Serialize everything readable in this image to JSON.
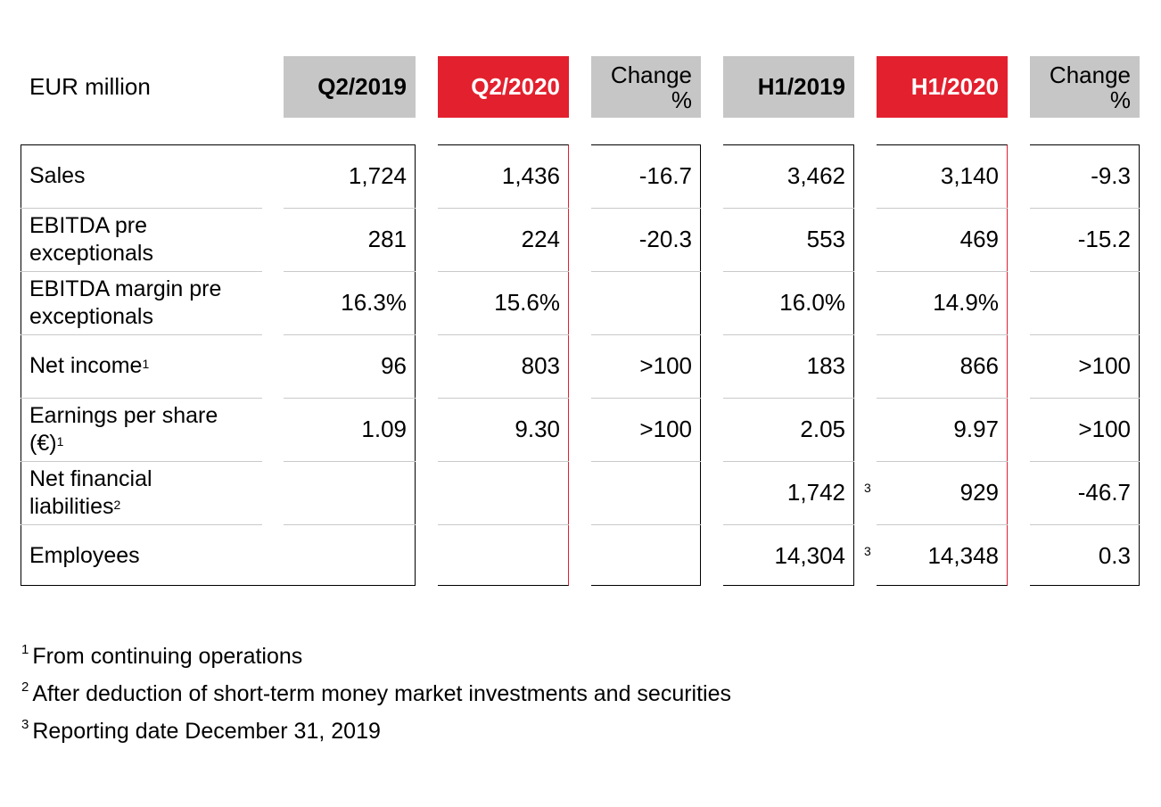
{
  "unit_label": "EUR million",
  "columns": {
    "q2_2019": "Q2/2019",
    "q2_2020": "Q2/2020",
    "change1_line1": "Change",
    "change1_line2": "%",
    "h1_2019": "H1/2019",
    "h1_2020": "H1/2020",
    "change2_line1": "Change",
    "change2_line2": "%"
  },
  "rows": [
    {
      "label_line1": "Sales",
      "label_line2": "",
      "label_sup": "",
      "q2_2019": "1,724",
      "q2_2020": "1,436",
      "change_q": "-16.7",
      "h1_2019": "3,462",
      "h1_2020": "3,140",
      "change_h": "-9.3",
      "h1_note": ""
    },
    {
      "label_line1": "EBITDA pre",
      "label_line2": "exceptionals",
      "label_sup": "",
      "q2_2019": "281",
      "q2_2020": "224",
      "change_q": "-20.3",
      "h1_2019": "553",
      "h1_2020": "469",
      "change_h": "-15.2",
      "h1_note": ""
    },
    {
      "label_line1": "EBITDA margin pre",
      "label_line2": "exceptionals",
      "label_sup": "",
      "q2_2019": "16.3%",
      "q2_2020": "15.6%",
      "change_q": "",
      "h1_2019": "16.0%",
      "h1_2020": "14.9%",
      "change_h": "",
      "h1_note": ""
    },
    {
      "label_line1": "Net income",
      "label_line2": "",
      "label_sup": "1",
      "q2_2019": "96",
      "q2_2020": "803",
      "change_q": ">100",
      "h1_2019": "183",
      "h1_2020": "866",
      "change_h": ">100",
      "h1_note": ""
    },
    {
      "label_line1": "Earnings per share",
      "label_line2": "(€)",
      "label_sup": "1",
      "q2_2019": "1.09",
      "q2_2020": "9.30",
      "change_q": ">100",
      "h1_2019": "2.05",
      "h1_2020": "9.97",
      "change_h": ">100",
      "h1_note": ""
    },
    {
      "label_line1": "Net financial",
      "label_line2": "liabilities",
      "label_sup": "2",
      "q2_2019": "",
      "q2_2020": "",
      "change_q": "",
      "h1_2019": "1,742",
      "h1_2020": "929",
      "change_h": "-46.7",
      "h1_note": "3"
    },
    {
      "label_line1": "Employees",
      "label_line2": "",
      "label_sup": "",
      "q2_2019": "",
      "q2_2020": "",
      "change_q": "",
      "h1_2019": "14,304",
      "h1_2020": "14,348",
      "change_h": "0.3",
      "h1_note": "3"
    }
  ],
  "footnotes": [
    {
      "num": "1",
      "text": "From continuing operations"
    },
    {
      "num": "2",
      "text": "After deduction of short-term money market investments and securities"
    },
    {
      "num": "3",
      "text": "Reporting date December 31, 2019"
    }
  ],
  "colors": {
    "accent_red": "#e3202e",
    "header_gray": "#c6c6c6"
  }
}
